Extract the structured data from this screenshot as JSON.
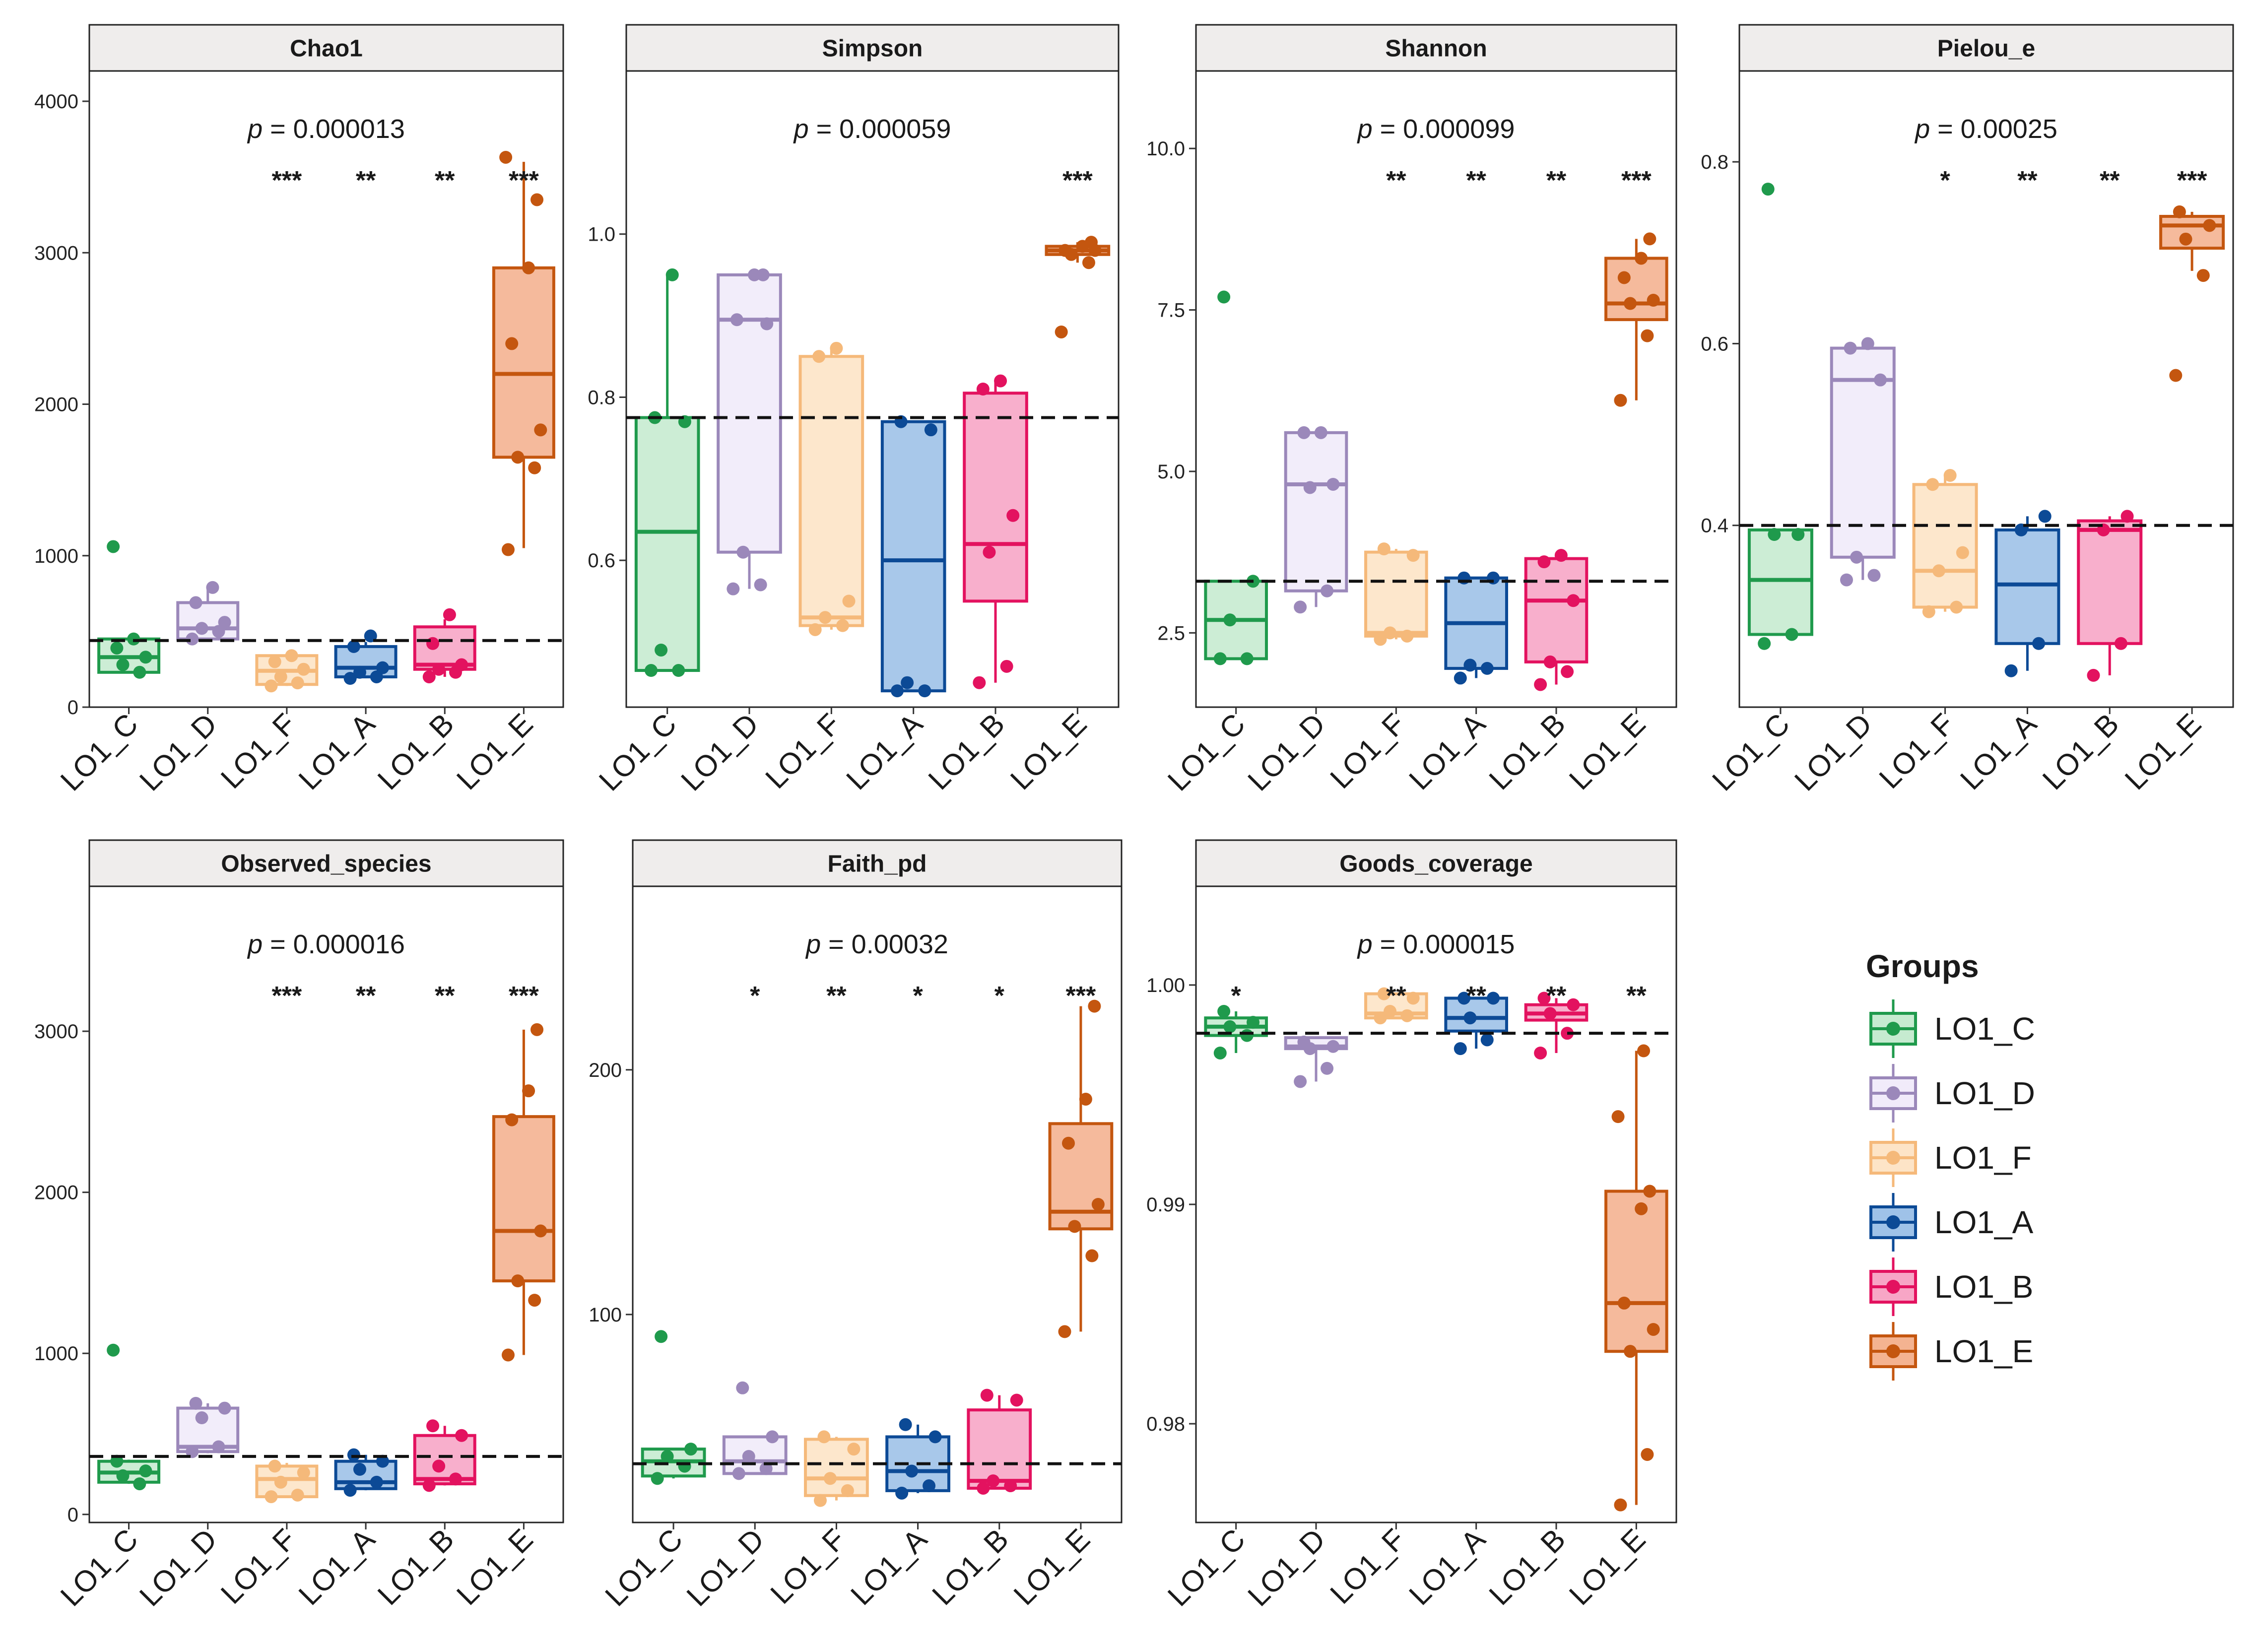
{
  "chart_data": [
    {
      "type": "box",
      "title": "Chao1",
      "pvalue": "0.000013",
      "categories": [
        "LO1_C",
        "LO1_D",
        "LO1_F",
        "LO1_A",
        "LO1_B",
        "LO1_E"
      ],
      "ylim": [
        0,
        4200
      ],
      "yticks": [
        0,
        1000,
        2000,
        3000,
        4000
      ],
      "ytick_labels": [
        "0",
        "1000",
        "2000",
        "3000",
        "4000"
      ],
      "reference_line": 440,
      "significance": [
        "",
        "",
        "***",
        "**",
        "**",
        "***"
      ],
      "boxes": [
        {
          "q1": 230,
          "median": 330,
          "q3": 450,
          "min": 230,
          "max": 450
        },
        {
          "q1": 450,
          "median": 520,
          "q3": 690,
          "min": 450,
          "max": 790
        },
        {
          "q1": 150,
          "median": 240,
          "q3": 340,
          "min": 140,
          "max": 340
        },
        {
          "q1": 200,
          "median": 260,
          "q3": 400,
          "min": 190,
          "max": 430
        },
        {
          "q1": 250,
          "median": 280,
          "q3": 530,
          "min": 200,
          "max": 580
        },
        {
          "q1": 1650,
          "median": 2200,
          "q3": 2900,
          "min": 1050,
          "max": 3600
        }
      ],
      "points": [
        [
          1060,
          230,
          280,
          330,
          390,
          450
        ],
        [
          450,
          500,
          520,
          560,
          690,
          790
        ],
        [
          140,
          160,
          200,
          250,
          300,
          340
        ],
        [
          190,
          200,
          230,
          260,
          400,
          470
        ],
        [
          200,
          230,
          250,
          280,
          420,
          610
        ],
        [
          1040,
          1580,
          1650,
          1830,
          2400,
          2900,
          3350,
          3630
        ]
      ]
    },
    {
      "type": "box",
      "title": "Simpson",
      "pvalue": "0.000059",
      "categories": [
        "LO1_C",
        "LO1_D",
        "LO1_F",
        "LO1_A",
        "LO1_B",
        "LO1_E"
      ],
      "ylim": [
        0.42,
        1.2
      ],
      "yticks": [
        0.6,
        0.8,
        1.0
      ],
      "ytick_labels": [
        "0.6",
        "0.8",
        "1.0"
      ],
      "reference_line": 0.775,
      "significance": [
        "",
        "",
        "",
        "",
        "",
        "***"
      ],
      "boxes": [
        {
          "q1": 0.465,
          "median": 0.635,
          "q3": 0.775,
          "min": 0.465,
          "max": 0.95
        },
        {
          "q1": 0.61,
          "median": 0.895,
          "q3": 0.95,
          "min": 0.565,
          "max": 0.95
        },
        {
          "q1": 0.52,
          "median": 0.53,
          "q3": 0.85,
          "min": 0.515,
          "max": 0.86
        },
        {
          "q1": 0.44,
          "median": 0.6,
          "q3": 0.77,
          "min": 0.44,
          "max": 0.77
        },
        {
          "q1": 0.55,
          "median": 0.62,
          "q3": 0.805,
          "min": 0.45,
          "max": 0.82
        },
        {
          "q1": 0.975,
          "median": 0.98,
          "q3": 0.985,
          "min": 0.965,
          "max": 0.99
        }
      ],
      "points": [
        [
          0.465,
          0.465,
          0.49,
          0.77,
          0.775,
          0.95
        ],
        [
          0.565,
          0.57,
          0.61,
          0.89,
          0.895,
          0.95,
          0.95
        ],
        [
          0.515,
          0.52,
          0.53,
          0.55,
          0.85,
          0.86
        ],
        [
          0.44,
          0.44,
          0.45,
          0.76,
          0.77
        ],
        [
          0.45,
          0.47,
          0.61,
          0.655,
          0.81,
          0.82
        ],
        [
          0.88,
          0.965,
          0.975,
          0.98,
          0.98,
          0.985,
          0.99
        ]
      ]
    },
    {
      "type": "box",
      "title": "Shannon",
      "pvalue": "0.000099",
      "categories": [
        "LO1_C",
        "LO1_D",
        "LO1_F",
        "LO1_A",
        "LO1_B",
        "LO1_E"
      ],
      "ylim": [
        1.35,
        11.2
      ],
      "yticks": [
        2.5,
        5.0,
        7.5,
        10.0
      ],
      "ytick_labels": [
        "2.5",
        "5.0",
        "7.5",
        "10.0"
      ],
      "reference_line": 3.3,
      "significance": [
        "",
        "",
        "**",
        "**",
        "**",
        "***"
      ],
      "boxes": [
        {
          "q1": 2.1,
          "median": 2.7,
          "q3": 3.3,
          "min": 2.1,
          "max": 3.3
        },
        {
          "q1": 3.15,
          "median": 4.8,
          "q3": 5.6,
          "min": 2.9,
          "max": 5.6
        },
        {
          "q1": 2.45,
          "median": 2.5,
          "q3": 3.75,
          "min": 2.4,
          "max": 3.8
        },
        {
          "q1": 1.95,
          "median": 2.65,
          "q3": 3.35,
          "min": 1.8,
          "max": 3.35
        },
        {
          "q1": 2.05,
          "median": 3.0,
          "q3": 3.65,
          "min": 1.7,
          "max": 3.7
        },
        {
          "q1": 7.35,
          "median": 7.6,
          "q3": 8.3,
          "min": 6.1,
          "max": 8.6
        }
      ],
      "points": [
        [
          2.1,
          2.1,
          2.7,
          3.3,
          7.7
        ],
        [
          2.9,
          3.15,
          4.75,
          4.8,
          5.6,
          5.6
        ],
        [
          2.4,
          2.45,
          2.5,
          3.7,
          3.8
        ],
        [
          1.8,
          1.95,
          2.0,
          3.35,
          3.35
        ],
        [
          1.7,
          1.9,
          2.05,
          3.0,
          3.6,
          3.7
        ],
        [
          6.1,
          7.1,
          7.6,
          7.65,
          8.0,
          8.3,
          8.6
        ]
      ]
    },
    {
      "type": "box",
      "title": "Pielou_e",
      "pvalue": "0.00025",
      "categories": [
        "LO1_C",
        "LO1_D",
        "LO1_F",
        "LO1_A",
        "LO1_B",
        "LO1_E"
      ],
      "ylim": [
        0.2,
        0.9
      ],
      "yticks": [
        0.4,
        0.6,
        0.8
      ],
      "ytick_labels": [
        "0.4",
        "0.6",
        "0.8"
      ],
      "reference_line": 0.4,
      "significance": [
        "",
        "",
        "*",
        "**",
        "**",
        "***"
      ],
      "boxes": [
        {
          "q1": 0.28,
          "median": 0.34,
          "q3": 0.395,
          "min": 0.28,
          "max": 0.395
        },
        {
          "q1": 0.365,
          "median": 0.56,
          "q3": 0.595,
          "min": 0.34,
          "max": 0.6
        },
        {
          "q1": 0.31,
          "median": 0.35,
          "q3": 0.445,
          "min": 0.305,
          "max": 0.455
        },
        {
          "q1": 0.27,
          "median": 0.335,
          "q3": 0.395,
          "min": 0.24,
          "max": 0.41
        },
        {
          "q1": 0.27,
          "median": 0.395,
          "q3": 0.405,
          "min": 0.235,
          "max": 0.41
        },
        {
          "q1": 0.705,
          "median": 0.73,
          "q3": 0.74,
          "min": 0.68,
          "max": 0.745
        }
      ],
      "points": [
        [
          0.27,
          0.28,
          0.39,
          0.39,
          0.77
        ],
        [
          0.34,
          0.345,
          0.365,
          0.56,
          0.595,
          0.6
        ],
        [
          0.305,
          0.31,
          0.35,
          0.37,
          0.445,
          0.455
        ],
        [
          0.24,
          0.27,
          0.395,
          0.41
        ],
        [
          0.235,
          0.27,
          0.395,
          0.41
        ],
        [
          0.565,
          0.675,
          0.715,
          0.73,
          0.745
        ]
      ]
    },
    {
      "type": "box",
      "title": "Observed_species",
      "pvalue": "0.000016",
      "categories": [
        "LO1_C",
        "LO1_D",
        "LO1_F",
        "LO1_A",
        "LO1_B",
        "LO1_E"
      ],
      "ylim": [
        -50,
        3900
      ],
      "yticks": [
        0,
        1000,
        2000,
        3000
      ],
      "ytick_labels": [
        "0",
        "1000",
        "2000",
        "3000"
      ],
      "reference_line": 360,
      "significance": [
        "",
        "",
        "***",
        "**",
        "**",
        "***"
      ],
      "boxes": [
        {
          "q1": 200,
          "median": 260,
          "q3": 330,
          "min": 190,
          "max": 340
        },
        {
          "q1": 390,
          "median": 420,
          "q3": 660,
          "min": 380,
          "max": 690
        },
        {
          "q1": 110,
          "median": 220,
          "q3": 300,
          "min": 110,
          "max": 320
        },
        {
          "q1": 160,
          "median": 200,
          "q3": 330,
          "min": 150,
          "max": 370
        },
        {
          "q1": 190,
          "median": 220,
          "q3": 490,
          "min": 180,
          "max": 550
        },
        {
          "q1": 1450,
          "median": 1760,
          "q3": 2470,
          "min": 990,
          "max": 3010
        }
      ],
      "points": [
        [
          1020,
          190,
          240,
          270,
          330
        ],
        [
          390,
          420,
          600,
          660,
          690
        ],
        [
          110,
          120,
          200,
          260,
          300
        ],
        [
          150,
          200,
          280,
          330,
          370
        ],
        [
          180,
          220,
          300,
          490,
          550
        ],
        [
          990,
          1330,
          1450,
          1760,
          2450,
          2630,
          3010
        ]
      ]
    },
    {
      "type": "box",
      "title": "Faith_pd",
      "pvalue": "0.00032",
      "categories": [
        "LO1_C",
        "LO1_D",
        "LO1_F",
        "LO1_A",
        "LO1_B",
        "LO1_E"
      ],
      "ylim": [
        15,
        275
      ],
      "yticks": [
        100,
        200
      ],
      "ytick_labels": [
        "100",
        "200"
      ],
      "reference_line": 39,
      "significance": [
        "",
        "*",
        "**",
        "*",
        "*",
        "***"
      ],
      "boxes": [
        {
          "q1": 34,
          "median": 40,
          "q3": 45,
          "min": 33,
          "max": 45
        },
        {
          "q1": 35,
          "median": 40,
          "q3": 50,
          "min": 35,
          "max": 50
        },
        {
          "q1": 26,
          "median": 33,
          "q3": 49,
          "min": 24,
          "max": 50
        },
        {
          "q1": 28,
          "median": 36,
          "q3": 50,
          "min": 27,
          "max": 55
        },
        {
          "q1": 29,
          "median": 32,
          "q3": 61,
          "min": 29,
          "max": 67
        },
        {
          "q1": 135,
          "median": 142,
          "q3": 178,
          "min": 93,
          "max": 226
        }
      ],
      "points": [
        [
          33,
          38,
          42,
          45,
          91
        ],
        [
          35,
          37,
          42,
          50,
          70
        ],
        [
          24,
          28,
          33,
          45,
          50
        ],
        [
          27,
          30,
          36,
          50,
          55
        ],
        [
          29,
          30,
          32,
          65,
          67
        ],
        [
          93,
          124,
          136,
          145,
          170,
          188,
          226
        ]
      ]
    },
    {
      "type": "box",
      "title": "Goods_coverage",
      "pvalue": "0.000015",
      "categories": [
        "LO1_C",
        "LO1_D",
        "LO1_F",
        "LO1_A",
        "LO1_B",
        "LO1_E"
      ],
      "ylim": [
        0.9755,
        1.0045
      ],
      "yticks": [
        0.98,
        0.99,
        1.0
      ],
      "ytick_labels": [
        "0.98",
        "0.99",
        "1.00"
      ],
      "reference_line": 0.9978,
      "significance": [
        "*",
        "",
        "**",
        "**",
        "**",
        "**"
      ],
      "boxes": [
        {
          "q1": 0.9977,
          "median": 0.9981,
          "q3": 0.9985,
          "min": 0.9969,
          "max": 0.9988
        },
        {
          "q1": 0.9971,
          "median": 0.9972,
          "q3": 0.9976,
          "min": 0.9956,
          "max": 0.9976
        },
        {
          "q1": 0.9985,
          "median": 0.9987,
          "q3": 0.9996,
          "min": 0.9985,
          "max": 0.9996
        },
        {
          "q1": 0.9979,
          "median": 0.9985,
          "q3": 0.9994,
          "min": 0.9971,
          "max": 0.9994
        },
        {
          "q1": 0.9984,
          "median": 0.9987,
          "q3": 0.9991,
          "min": 0.9969,
          "max": 0.9994
        },
        {
          "q1": 0.9833,
          "median": 0.9855,
          "q3": 0.9906,
          "min": 0.9763,
          "max": 0.997
        }
      ],
      "points": [
        [
          0.9969,
          0.9977,
          0.9981,
          0.9983,
          0.9988
        ],
        [
          0.9956,
          0.9962,
          0.9971,
          0.9972,
          0.9974
        ],
        [
          0.9985,
          0.9986,
          0.9988,
          0.9994,
          0.9996
        ],
        [
          0.9971,
          0.9975,
          0.9985,
          0.9994,
          0.9994
        ],
        [
          0.9969,
          0.9978,
          0.9987,
          0.9991,
          0.9994
        ],
        [
          0.9763,
          0.9786,
          0.9833,
          0.9843,
          0.9855,
          0.9898,
          0.9906,
          0.994,
          0.997
        ]
      ]
    }
  ],
  "pvalue_prefix": "p",
  "pvalue_sep": " = ",
  "legend": {
    "title": "Groups",
    "items": [
      "LO1_C",
      "LO1_D",
      "LO1_F",
      "LO1_A",
      "LO1_B",
      "LO1_E"
    ]
  },
  "colors": {
    "LO1_C": {
      "line": "#1f9a4c",
      "fill": "#c6ebd0"
    },
    "LO1_D": {
      "line": "#9b88ba",
      "fill": "#f1ebfa"
    },
    "LO1_F": {
      "line": "#f5b97a",
      "fill": "#fde4c7"
    },
    "LO1_A": {
      "line": "#0c4a96",
      "fill": "#9fc2e8"
    },
    "LO1_B": {
      "line": "#e3125f",
      "fill": "#f7a6c6"
    },
    "LO1_E": {
      "line": "#c4560f",
      "fill": "#f4b391"
    }
  }
}
